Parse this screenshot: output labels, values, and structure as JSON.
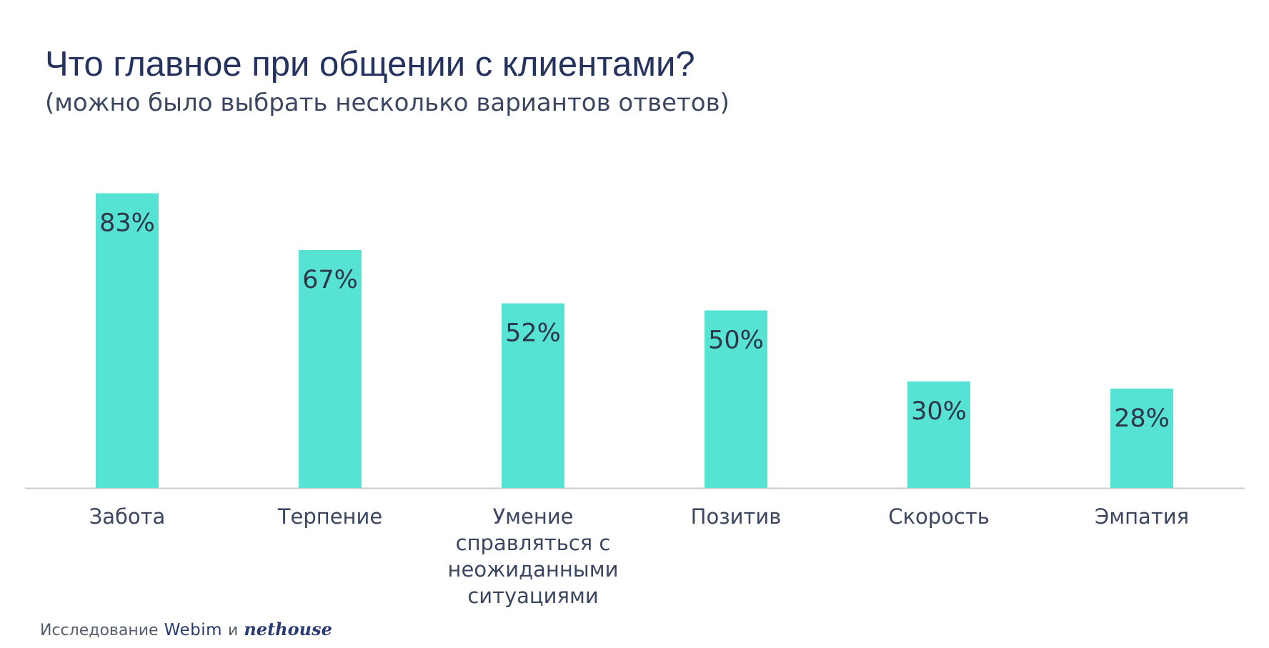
{
  "title": "Что главное при общении с клиентами?",
  "subtitle": "(можно было выбрать несколько вариантов ответов)",
  "chart_data": {
    "type": "bar",
    "categories": [
      "Забота",
      "Терпение",
      "Умение справляться с неожиданными ситуациями",
      "Позитив",
      "Скорость",
      "Эмпатия"
    ],
    "category_lines": [
      [
        "Забота"
      ],
      [
        "Терпение"
      ],
      [
        "Умение",
        "справляться с",
        "неожиданными",
        "ситуациями"
      ],
      [
        "Позитив"
      ],
      [
        "Скорость"
      ],
      [
        "Эмпатия"
      ]
    ],
    "values": [
      83,
      67,
      52,
      50,
      30,
      28
    ],
    "value_labels": [
      "83%",
      "67%",
      "52%",
      "50%",
      "30%",
      "28%"
    ],
    "ylim": [
      0,
      100
    ],
    "grid": false,
    "legend": "none",
    "bar_color": "#56e3d4",
    "axis_color": "#c9ccd1",
    "label_color": "#2e3648",
    "category_color": "#3b4660"
  },
  "footer": {
    "prefix": "Исследование",
    "brand1": "Webim",
    "conjunction": "и",
    "brand2": "nethouse"
  }
}
